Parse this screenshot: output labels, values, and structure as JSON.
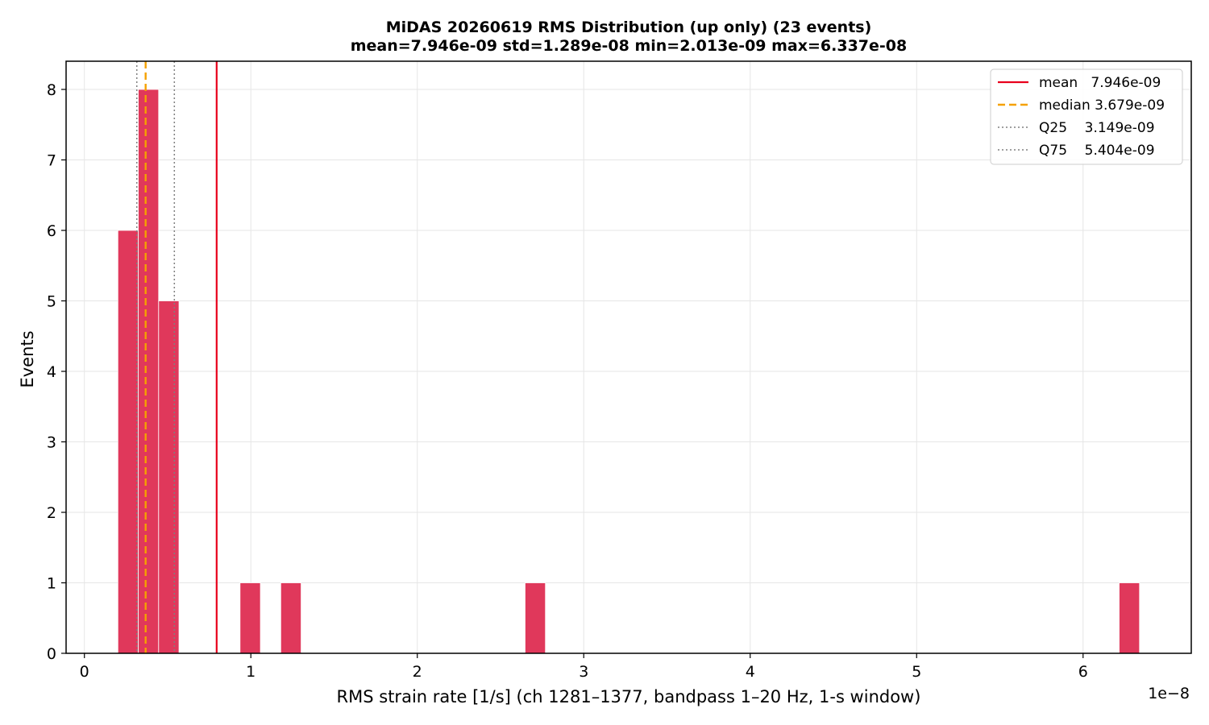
{
  "chart_data": {
    "type": "bar",
    "title": "MiDAS 20260619  RMS Distribution  (up only)  (23 events)",
    "subtitle": "mean=7.946e-09  std=1.289e-08  min=2.013e-09  max=6.337e-08",
    "xlabel": "RMS strain rate [1/s]  (ch 1281–1377, bandpass 1–20 Hz, 1-s window)",
    "ylabel": "Events",
    "x_scale_label": "1e−8",
    "x_unit_scale": 1e-08,
    "xlim": [
      -0.11,
      6.65
    ],
    "ylim": [
      0,
      8.4
    ],
    "xticks": [
      0,
      1,
      2,
      3,
      4,
      5,
      6
    ],
    "yticks": [
      0,
      1,
      2,
      3,
      4,
      5,
      6,
      7,
      8
    ],
    "grid": true,
    "legend_position": "top-right",
    "bar_color": "#e0385b",
    "bins": [
      {
        "x0": 0.2013,
        "x1": 0.3236,
        "count": 6
      },
      {
        "x0": 0.3236,
        "x1": 0.4459,
        "count": 8
      },
      {
        "x0": 0.4459,
        "x1": 0.5682,
        "count": 5
      },
      {
        "x0": 0.9351,
        "x1": 1.0574,
        "count": 1
      },
      {
        "x0": 1.1797,
        "x1": 1.302,
        "count": 1
      },
      {
        "x0": 2.6475,
        "x1": 2.7698,
        "count": 1
      },
      {
        "x0": 6.2167,
        "x1": 6.339,
        "count": 1
      }
    ],
    "reference_lines": [
      {
        "name": "mean",
        "label": "mean   7.946e-09",
        "x": 0.7946,
        "color": "#e8001c",
        "style": "solid"
      },
      {
        "name": "median",
        "label": "median 3.679e-09",
        "x": 0.3679,
        "color": "#f5a100",
        "style": "dashed"
      },
      {
        "name": "Q25",
        "label": "Q25    3.149e-09",
        "x": 0.3149,
        "color": "#808080",
        "style": "dotted"
      },
      {
        "name": "Q75",
        "label": "Q75    5.404e-09",
        "x": 0.5404,
        "color": "#808080",
        "style": "dotted"
      }
    ]
  }
}
